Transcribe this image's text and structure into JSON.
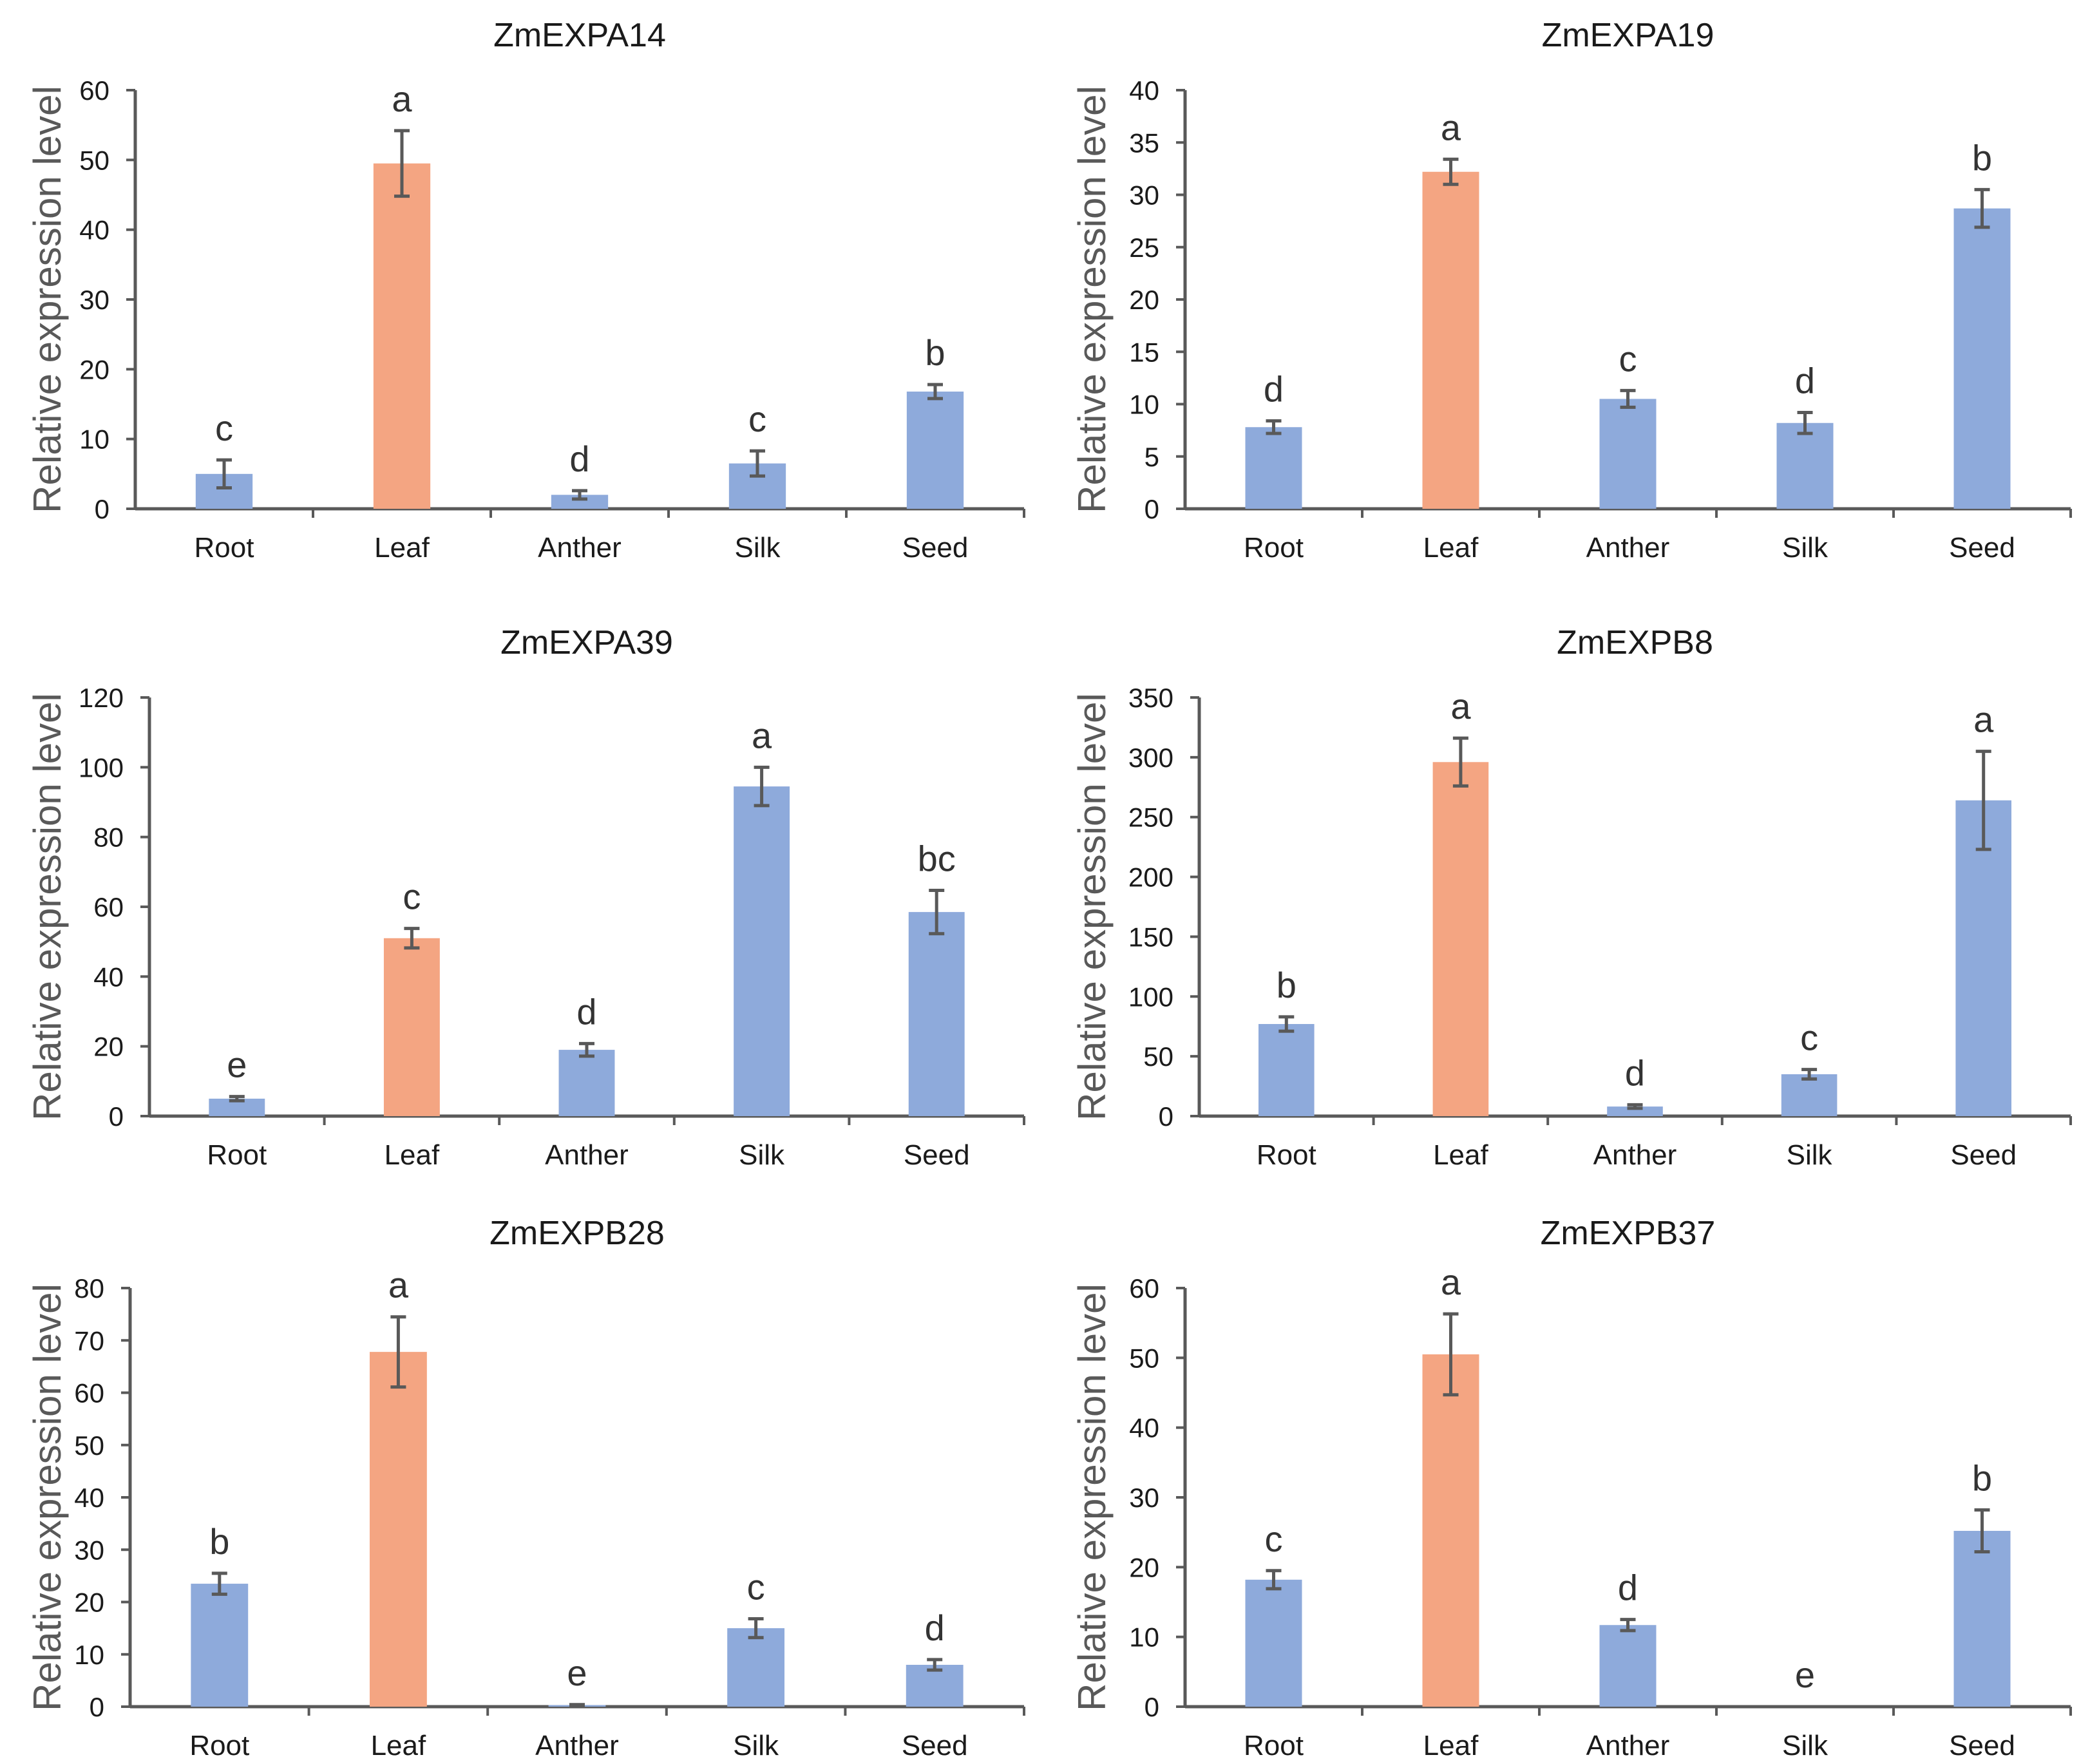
{
  "figure_colors": {
    "bar_default": "#8eaadb",
    "bar_highlight": "#f4a582",
    "axis": "#595959",
    "error_bar": "#595959"
  },
  "chart_data": [
    {
      "type": "bar",
      "title": "ZmEXPA14",
      "xlabel": "",
      "ylabel": "Relative expression level",
      "categories": [
        "Root",
        "Leaf",
        "Anther",
        "Silk",
        "Seed"
      ],
      "values": [
        5.0,
        49.5,
        2.0,
        6.5,
        16.8
      ],
      "errors": [
        2.0,
        4.7,
        0.6,
        1.8,
        1.0
      ],
      "letters": [
        "c",
        "a",
        "d",
        "c",
        "b"
      ],
      "highlight": [
        false,
        true,
        false,
        false,
        false
      ],
      "ylim": [
        0,
        60
      ],
      "yticks": [
        0,
        10,
        20,
        30,
        40,
        50,
        60
      ]
    },
    {
      "type": "bar",
      "title": "ZmEXPA19",
      "xlabel": "",
      "ylabel": "Relative expression level",
      "categories": [
        "Root",
        "Leaf",
        "Anther",
        "Silk",
        "Seed"
      ],
      "values": [
        7.8,
        32.2,
        10.5,
        8.2,
        28.7
      ],
      "errors": [
        0.6,
        1.2,
        0.8,
        1.0,
        1.8
      ],
      "letters": [
        "d",
        "a",
        "c",
        "d",
        "b"
      ],
      "highlight": [
        false,
        true,
        false,
        false,
        false
      ],
      "ylim": [
        0,
        40
      ],
      "yticks": [
        0,
        5,
        10,
        15,
        20,
        25,
        30,
        35,
        40
      ]
    },
    {
      "type": "bar",
      "title": "ZmEXPA39",
      "xlabel": "",
      "ylabel": "Relative expression level",
      "categories": [
        "Root",
        "Leaf",
        "Anther",
        "Silk",
        "Seed"
      ],
      "values": [
        5.0,
        51.0,
        19.0,
        94.5,
        58.5
      ],
      "errors": [
        0.6,
        2.8,
        1.8,
        5.5,
        6.2
      ],
      "letters": [
        "e",
        "c",
        "d",
        "a",
        "bc"
      ],
      "highlight": [
        false,
        true,
        false,
        false,
        false
      ],
      "ylim": [
        0,
        120
      ],
      "yticks": [
        0,
        20,
        40,
        60,
        80,
        100,
        120
      ]
    },
    {
      "type": "bar",
      "title": "ZmEXPB8",
      "xlabel": "",
      "ylabel": "Relative expression level",
      "categories": [
        "Root",
        "Leaf",
        "Anther",
        "Silk",
        "Seed"
      ],
      "values": [
        77.0,
        296.0,
        8.0,
        35.0,
        264.0
      ],
      "errors": [
        6.0,
        20.0,
        1.5,
        4.0,
        41.0
      ],
      "letters": [
        "b",
        "a",
        "d",
        "c",
        "a"
      ],
      "highlight": [
        false,
        true,
        false,
        false,
        false
      ],
      "ylim": [
        0,
        350
      ],
      "yticks": [
        0,
        50,
        100,
        150,
        200,
        250,
        300,
        350
      ]
    },
    {
      "type": "bar",
      "title": "ZmEXPB28",
      "xlabel": "",
      "ylabel": "Relative expression level",
      "categories": [
        "Root",
        "Leaf",
        "Anther",
        "Silk",
        "Seed"
      ],
      "values": [
        23.5,
        67.8,
        0.3,
        15.0,
        8.0
      ],
      "errors": [
        2.0,
        6.7,
        0.1,
        1.8,
        1.0
      ],
      "letters": [
        "b",
        "a",
        "e",
        "c",
        "d"
      ],
      "highlight": [
        false,
        true,
        false,
        false,
        false
      ],
      "ylim": [
        0,
        80
      ],
      "yticks": [
        0,
        10,
        20,
        30,
        40,
        50,
        60,
        70,
        80
      ]
    },
    {
      "type": "bar",
      "title": "ZmEXPB37",
      "xlabel": "",
      "ylabel": "Relative expression level",
      "categories": [
        "Root",
        "Leaf",
        "Anther",
        "Silk",
        "Seed"
      ],
      "values": [
        18.2,
        50.5,
        11.7,
        0.0,
        25.2
      ],
      "errors": [
        1.3,
        5.8,
        0.8,
        0.0,
        3.0
      ],
      "letters": [
        "c",
        "a",
        "d",
        "e",
        "b"
      ],
      "highlight": [
        false,
        true,
        false,
        false,
        false
      ],
      "ylim": [
        0,
        60
      ],
      "yticks": [
        0,
        10,
        20,
        30,
        40,
        50,
        60
      ]
    }
  ]
}
